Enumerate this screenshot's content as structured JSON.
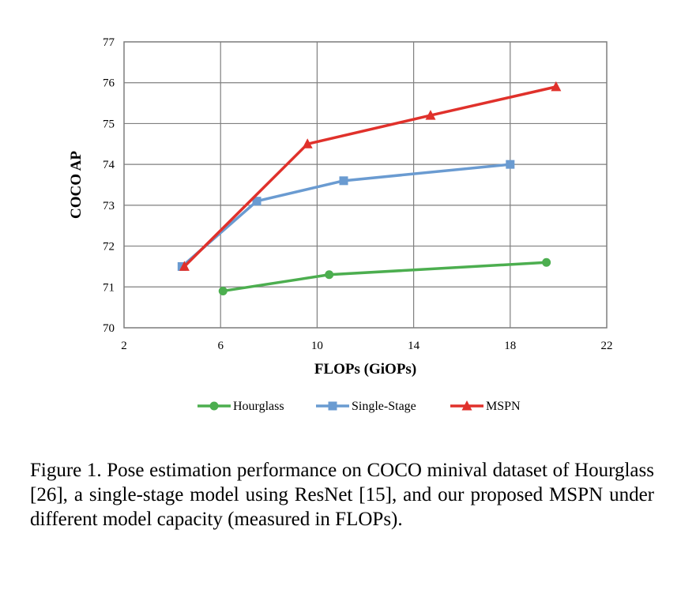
{
  "chart_data": {
    "type": "line",
    "xlabel": "FLOPs (GiOPs)",
    "ylabel": "COCO AP",
    "xlim": [
      2,
      22
    ],
    "ylim": [
      70,
      77
    ],
    "xticks": [
      2,
      6,
      10,
      14,
      18,
      22
    ],
    "yticks": [
      70,
      71,
      72,
      73,
      74,
      75,
      76,
      77
    ],
    "grid": true,
    "legend_position": "bottom",
    "series": [
      {
        "name": "Hourglass",
        "color": "#4cae4f",
        "marker": "circle",
        "x": [
          6.1,
          10.5,
          19.5
        ],
        "y": [
          70.9,
          71.3,
          71.6
        ]
      },
      {
        "name": "Single-Stage",
        "color": "#6a9bd1",
        "marker": "square",
        "x": [
          4.4,
          7.5,
          11.1,
          18.0
        ],
        "y": [
          71.5,
          73.1,
          73.6,
          74.0
        ]
      },
      {
        "name": "MSPN",
        "color": "#e0312b",
        "marker": "triangle",
        "x": [
          4.5,
          9.6,
          14.7,
          19.9
        ],
        "y": [
          71.5,
          74.5,
          75.2,
          75.9
        ]
      }
    ]
  },
  "caption": "Figure 1. Pose estimation performance on COCO minival dataset of Hourglass [26], a single-stage model using ResNet [15], and our proposed MSPN under different model capacity (measured in FLOPs)."
}
